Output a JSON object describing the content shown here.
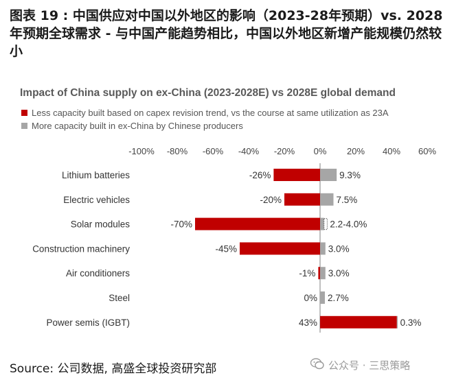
{
  "heading": "图表 19 : 中国供应对中国以外地区的影响（2023-28年预期）vs. 2028年预期全球需求 - 与中国产能趋势相比，中国以外地区新增产能规模仍然较小",
  "source": "Source: 公司数据, 高盛全球投资研究部",
  "watermark": "公众号 · 三思策略",
  "colors": {
    "series1": "#c00000",
    "series2": "#a6a6a6",
    "axis": "#7f7f7f"
  },
  "chart_data": {
    "type": "bar",
    "orientation": "horizontal",
    "title": "Impact of China supply on ex-China (2023-2028E)  vs 2028E global demand",
    "categories": [
      "Lithium batteries",
      "Electric vehicles",
      "Solar modules",
      "Construction machinery",
      "Air conditioners",
      "Steel",
      "Power semis (IGBT)"
    ],
    "xlim": [
      -100,
      60
    ],
    "x_ticks": [
      "-100%",
      "-80%",
      "-60%",
      "-40%",
      "-20%",
      "0%",
      "20%",
      "40%",
      "60%"
    ],
    "legend_position": "top-left",
    "series": [
      {
        "name": "Less capacity built based on capex revision trend, vs the course at same utilization as 23A",
        "values": [
          -26,
          -20,
          -70,
          -45,
          -1,
          0,
          43
        ],
        "labels": [
          "-26%",
          "-20%",
          "-70%",
          "-45%",
          "-1%",
          "0%",
          "43%"
        ]
      },
      {
        "name": "More capacity built in ex-China by Chinese producers",
        "values": [
          9.3,
          7.5,
          4.0,
          3.0,
          3.0,
          2.7,
          0.3
        ],
        "range_low": [
          null,
          null,
          2.2,
          null,
          null,
          null,
          null
        ],
        "labels": [
          "9.3%",
          "7.5%",
          "2.2-4.0%",
          "3.0%",
          "3.0%",
          "2.7%",
          "0.3%"
        ]
      }
    ]
  }
}
